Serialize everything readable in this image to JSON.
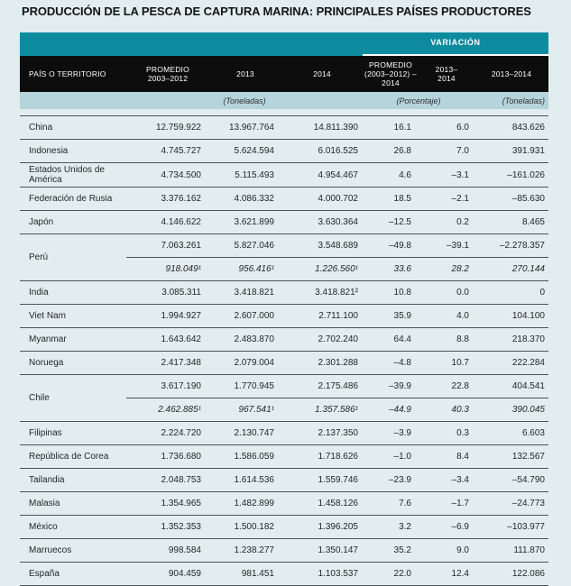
{
  "title": "PRODUCCIÓN DE LA PESCA DE CAPTURA MARINA: PRINCIPALES PAÍSES PRODUCTORES",
  "colors": {
    "teal": "#0f8ba0",
    "header_bg": "#0d0d0d",
    "units_bg": "#b5d4dc",
    "page_bg": "#e1edef",
    "line": "#49545a"
  },
  "table": {
    "variation_label": "VARIACIÓN",
    "columns": {
      "country": "PAÍS O TERRITORIO",
      "avg_2003_2012": "PROMEDIO\n2003–2012",
      "y2013": "2013",
      "y2014": "2014",
      "var_avg_2014": "PROMEDIO\n(2003–2012) –\n2014",
      "var_2013_2014_pct": "2013–\n2014",
      "var_2013_2014_ton": "2013–2014"
    },
    "units": {
      "tonnes_left": "(Toneladas)",
      "percent": "(Porcentaje)",
      "tonnes_right": "(Toneladas)"
    },
    "rows": [
      {
        "country": "China",
        "lines": [
          [
            "12.759.922",
            "13.967.764",
            "14.811.390",
            "16.1",
            "6.0",
            "843.626"
          ]
        ],
        "italic_lines": []
      },
      {
        "country": "Indonesia",
        "lines": [
          [
            "4.745.727",
            "5.624.594",
            "6.016.525",
            "26.8",
            "7.0",
            "391.931"
          ]
        ],
        "italic_lines": []
      },
      {
        "country": "Estados Unidos de América",
        "lines": [
          [
            "4.734.500",
            "5.115.493",
            "4.954.467",
            "4.6",
            "–3.1",
            "–161.026"
          ]
        ],
        "italic_lines": []
      },
      {
        "country": "Federación de Rusia",
        "lines": [
          [
            "3.376.162",
            "4.086.332",
            "4.000.702",
            "18.5",
            "–2.1",
            "–85.630"
          ]
        ],
        "italic_lines": []
      },
      {
        "country": "Japón",
        "lines": [
          [
            "4.146.622",
            "3.621.899",
            "3.630.364",
            "–12.5",
            "0.2",
            "8.465"
          ]
        ],
        "italic_lines": []
      },
      {
        "country": "Perú",
        "lines": [
          [
            "7.063.261",
            "5.827.046",
            "3.548.689",
            "–49.8",
            "–39.1",
            "–2.278.357"
          ],
          [
            "918.049¹",
            "956.416¹",
            "1.226.560¹",
            "33.6",
            "28.2",
            "270.144"
          ]
        ],
        "italic_lines": [
          1
        ]
      },
      {
        "country": "India",
        "lines": [
          [
            "3.085.311",
            "3.418.821",
            "3.418.821²",
            "10.8",
            "0.0",
            "0"
          ]
        ],
        "italic_lines": []
      },
      {
        "country": "Viet Nam",
        "lines": [
          [
            "1.994.927",
            "2.607.000",
            "2.711.100",
            "35.9",
            "4.0",
            "104.100"
          ]
        ],
        "italic_lines": []
      },
      {
        "country": "Myanmar",
        "lines": [
          [
            "1.643.642",
            "2.483.870",
            "2.702.240",
            "64.4",
            "8.8",
            "218.370"
          ]
        ],
        "italic_lines": []
      },
      {
        "country": "Noruega",
        "lines": [
          [
            "2.417.348",
            "2.079.004",
            "2.301.288",
            "–4.8",
            "10.7",
            "222.284"
          ]
        ],
        "italic_lines": []
      },
      {
        "country": "Chile",
        "lines": [
          [
            "3.617.190",
            "1.770.945",
            "2.175.486",
            "–39.9",
            "22.8",
            "404.541"
          ],
          [
            "2.462.885¹",
            "967.541¹",
            "1.357.586¹",
            "–44.9",
            "40.3",
            "390.045"
          ]
        ],
        "italic_lines": [
          1
        ]
      },
      {
        "country": "Filipinas",
        "lines": [
          [
            "2.224.720",
            "2.130.747",
            "2.137.350",
            "–3.9",
            "0.3",
            "6.603"
          ]
        ],
        "italic_lines": []
      },
      {
        "country": "República de Corea",
        "lines": [
          [
            "1.736.680",
            "1.586.059",
            "1.718.626",
            "–1.0",
            "8.4",
            "132.567"
          ]
        ],
        "italic_lines": []
      },
      {
        "country": "Tailandia",
        "lines": [
          [
            "2.048.753",
            "1.614.536",
            "1.559.746",
            "–23.9",
            "–3.4",
            "–54.790"
          ]
        ],
        "italic_lines": []
      },
      {
        "country": "Malasia",
        "lines": [
          [
            "1.354.965",
            "1.482.899",
            "1.458.126",
            "7.6",
            "–1.7",
            "–24.773"
          ]
        ],
        "italic_lines": []
      },
      {
        "country": "México",
        "lines": [
          [
            "1.352.353",
            "1.500.182",
            "1.396.205",
            "3.2",
            "–6.9",
            "–103.977"
          ]
        ],
        "italic_lines": []
      },
      {
        "country": "Marruecos",
        "lines": [
          [
            "998.584",
            "1.238.277",
            "1.350.147",
            "35.2",
            "9.0",
            "111.870"
          ]
        ],
        "italic_lines": []
      },
      {
        "country": "España",
        "lines": [
          [
            "904.459",
            "981.451",
            "1.103.537",
            "22.0",
            "12.4",
            "122.086"
          ]
        ],
        "italic_lines": []
      }
    ]
  }
}
